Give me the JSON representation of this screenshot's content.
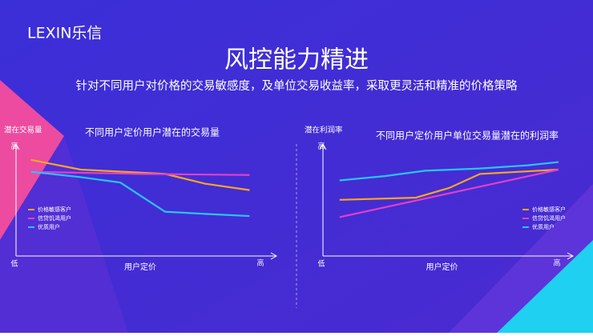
{
  "header": {
    "logo": "LEXIN乐信",
    "title": "风控能力精进",
    "subtitle": "针对不同用户对价格的交易敏感度，及单位交易收益率，采取更灵活和精准的价格策略"
  },
  "chart_data": [
    {
      "type": "line",
      "title": "不同用户定价用户潜在的交易量",
      "y_label": "潜在交易量",
      "x_label": "用户定价",
      "y_high": "高",
      "x_low": "低",
      "x_high": "高",
      "xlim": [
        0,
        100
      ],
      "ylim": [
        0,
        100
      ],
      "legend": "left",
      "series": [
        {
          "name": "价格敏感客户",
          "color": "#f5a623",
          "x": [
            6,
            26,
            60,
            76,
            94
          ],
          "values": [
            89,
            80,
            76,
            67,
            61
          ]
        },
        {
          "name": "信贷饥渴用户",
          "color": "#e040c8",
          "x": [
            6,
            50,
            94
          ],
          "values": [
            78,
            76,
            75
          ]
        },
        {
          "name": "优质用户",
          "color": "#29c5f6",
          "x": [
            6,
            26,
            42,
            50,
            60,
            76,
            94
          ],
          "values": [
            78,
            73,
            68,
            56,
            41,
            39,
            37
          ]
        }
      ]
    },
    {
      "type": "line",
      "title": "不同用户定价用户单位交易量潜在的利润率",
      "y_label": "潜在利润率",
      "x_label": "用户定价",
      "y_high": "高",
      "x_low": "低",
      "x_high": "高",
      "xlim": [
        0,
        100
      ],
      "ylim": [
        0,
        100
      ],
      "legend": "right",
      "series": [
        {
          "name": "价格敏感客户",
          "color": "#f5a623",
          "x": [
            7,
            39,
            53,
            66,
            99
          ],
          "values": [
            52,
            54,
            63,
            76,
            80
          ]
        },
        {
          "name": "信贷饥渴用户",
          "color": "#e040c8",
          "x": [
            7,
            53,
            99
          ],
          "values": [
            36,
            58,
            80
          ]
        },
        {
          "name": "优质用户",
          "color": "#29c5f6",
          "x": [
            7,
            26,
            43,
            66,
            86,
            99
          ],
          "values": [
            70,
            74,
            79,
            81,
            84,
            87
          ]
        }
      ]
    }
  ]
}
